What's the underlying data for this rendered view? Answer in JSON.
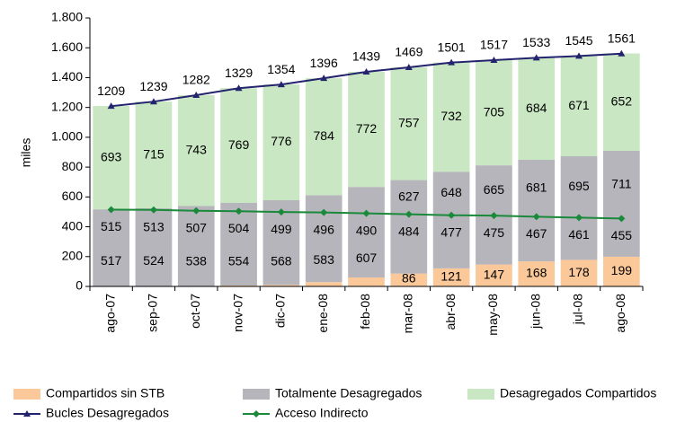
{
  "chart_data": {
    "type": "stacked-bar-line",
    "y_axis_label": "miles",
    "categories": [
      "ago-07",
      "sep-07",
      "oct-07",
      "nov-07",
      "dic-07",
      "ene-08",
      "feb-08",
      "mar-08",
      "abr-08",
      "may-08",
      "jun-08",
      "jul-08",
      "ago-08"
    ],
    "ylim": [
      0,
      1800
    ],
    "yticks": [
      0,
      200,
      400,
      600,
      800,
      {
        "value": 1000,
        "label": "1.000"
      },
      {
        "value": 1200,
        "label": "1.200"
      },
      {
        "value": 1400,
        "label": "1.400"
      },
      {
        "value": 1600,
        "label": "1.600"
      },
      {
        "value": 1800,
        "label": "1.800"
      }
    ],
    "series": [
      {
        "name": "Compartidos sin STB",
        "kind": "bar",
        "color": "#fbc89a",
        "values": [
          0,
          0,
          1,
          6,
          10,
          29,
          60,
          86,
          121,
          147,
          168,
          178,
          199
        ],
        "value_labels": [
          null,
          null,
          null,
          null,
          null,
          null,
          null,
          "86",
          "121",
          "147",
          "168",
          "178",
          "199"
        ]
      },
      {
        "name": "Totalmente Desagregados",
        "kind": "bar",
        "color": "#b5b5bb",
        "values": [
          517,
          524,
          538,
          554,
          568,
          583,
          607,
          627,
          648,
          665,
          681,
          695,
          711
        ]
      },
      {
        "name": "Desagregados Compartidos",
        "kind": "bar",
        "color": "#c8e7c2",
        "values": [
          693,
          715,
          743,
          769,
          776,
          784,
          772,
          757,
          732,
          705,
          684,
          671,
          652
        ]
      },
      {
        "name": "Bucles Desagregados",
        "kind": "line",
        "color": "#23236e",
        "values": [
          1209,
          1239,
          1282,
          1329,
          1354,
          1396,
          1439,
          1469,
          1501,
          1517,
          1533,
          1545,
          1561
        ]
      },
      {
        "name": "Acceso Indirecto",
        "kind": "line",
        "color": "#1a8a3a",
        "values": [
          515,
          513,
          507,
          504,
          499,
          496,
          490,
          484,
          477,
          475,
          467,
          461,
          455
        ]
      }
    ]
  }
}
